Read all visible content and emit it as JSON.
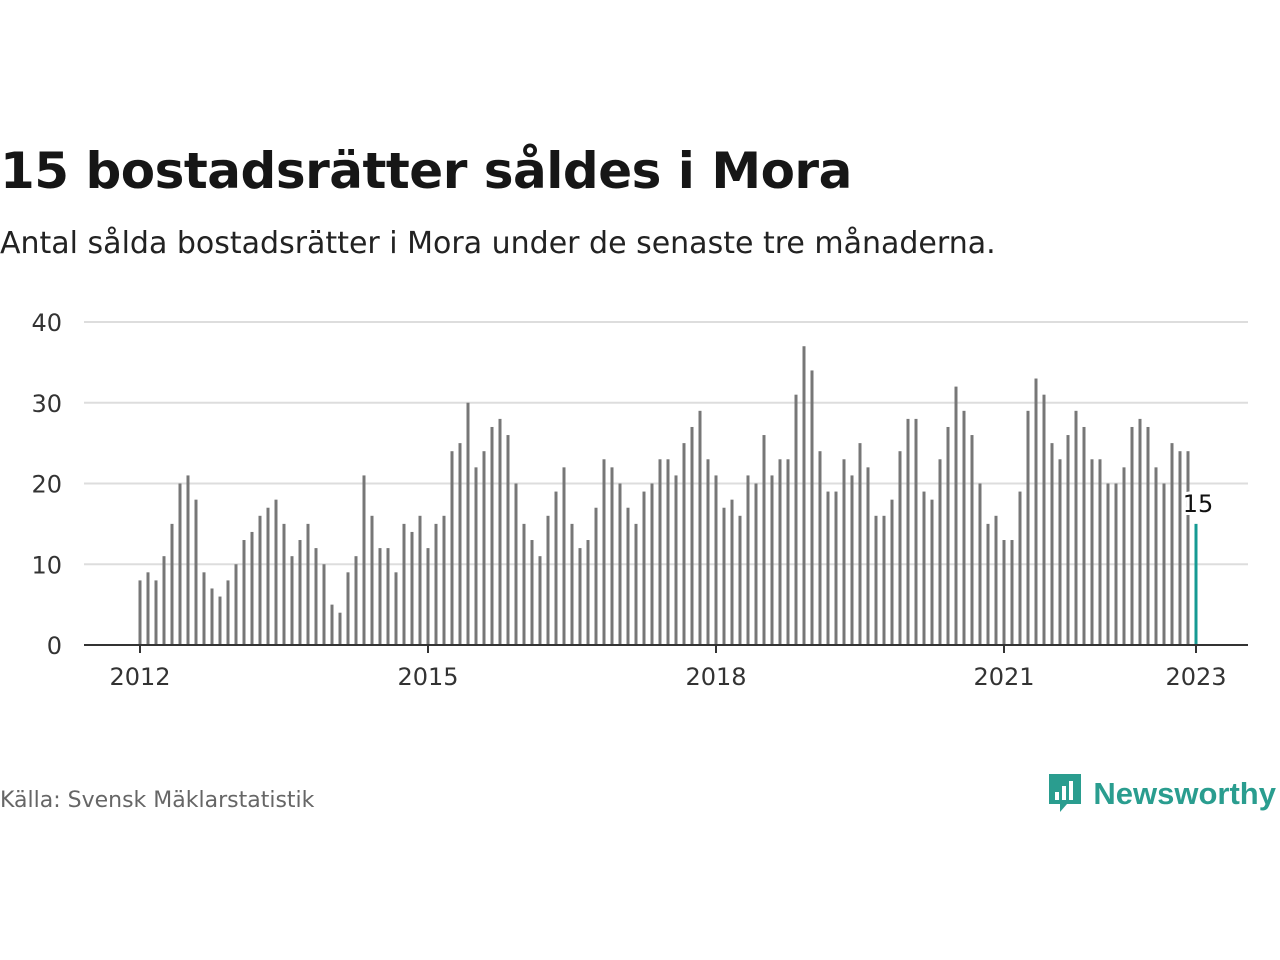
{
  "header": {
    "title": "15 bostadsrätter såldes i Mora",
    "subtitle": "Antal sålda bostadsrätter i Mora under de senaste tre månaderna."
  },
  "footer": {
    "source": "Källa: Svensk Mäklarstatistik",
    "brand": "Newsworthy",
    "brand_icon": "newsworthy-logo-icon"
  },
  "colors": {
    "bar": "#777777",
    "highlight": "#159a93",
    "grid": "#dddddd",
    "axis": "#333333",
    "brand": "#2a9d8f"
  },
  "chart_data": {
    "type": "bar",
    "title": "15 bostadsrätter såldes i Mora",
    "xlabel": "",
    "ylabel": "",
    "ylim": [
      0,
      40
    ],
    "yticks": [
      0,
      10,
      20,
      30,
      40
    ],
    "xticks": [
      "2012",
      "2015",
      "2018",
      "2021",
      "2023"
    ],
    "grid": true,
    "x_start": "2012-01",
    "x_end": "2023-01",
    "frequency": "monthly",
    "values": [
      8,
      9,
      8,
      11,
      15,
      20,
      21,
      18,
      9,
      7,
      6,
      8,
      10,
      13,
      14,
      16,
      17,
      18,
      15,
      11,
      13,
      15,
      12,
      10,
      5,
      4,
      9,
      11,
      21,
      16,
      12,
      12,
      9,
      15,
      14,
      16,
      12,
      15,
      16,
      24,
      25,
      30,
      22,
      24,
      27,
      28,
      26,
      20,
      15,
      13,
      11,
      16,
      19,
      22,
      15,
      12,
      13,
      17,
      23,
      22,
      20,
      17,
      15,
      19,
      20,
      23,
      23,
      21,
      25,
      27,
      29,
      23,
      21,
      17,
      18,
      16,
      21,
      20,
      26,
      21,
      23,
      23,
      31,
      37,
      34,
      24,
      19,
      19,
      23,
      21,
      25,
      22,
      16,
      16,
      18,
      24,
      28,
      28,
      19,
      18,
      23,
      27,
      32,
      29,
      26,
      20,
      15,
      16,
      13,
      13,
      19,
      29,
      33,
      31,
      25,
      23,
      26,
      29,
      27,
      23,
      23,
      20,
      20,
      22,
      27,
      28,
      27,
      22,
      20,
      25,
      24,
      24,
      15
    ],
    "highlight": {
      "label": "15",
      "value": 15,
      "date": "2023-01"
    }
  }
}
